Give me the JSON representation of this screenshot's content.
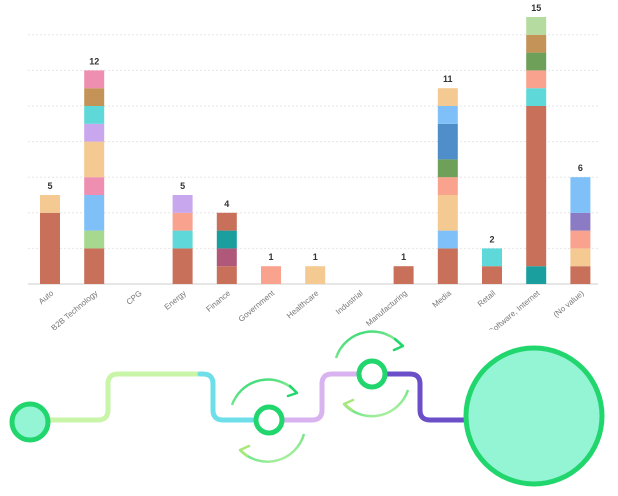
{
  "chart_data": {
    "type": "bar",
    "stacked": true,
    "grid": true,
    "legend": "none",
    "ylim": [
      0,
      15
    ],
    "categories": [
      "Auto",
      "B2B Technology",
      "CPG",
      "Energy",
      "Finance",
      "Government",
      "Healthcare",
      "Industrial",
      "Manufacturing",
      "Media",
      "Retail",
      "Tech, Software, Internet",
      "(No value)"
    ],
    "totals": [
      "5",
      "12",
      "",
      "5",
      "4",
      "1",
      "1",
      "",
      "1",
      "11",
      "2",
      "15",
      "6"
    ],
    "stacks": [
      [
        {
          "value": 4,
          "color": "#c8705a"
        },
        {
          "value": 1,
          "color": "#f5c992"
        }
      ],
      [
        {
          "value": 2,
          "color": "#c8705a"
        },
        {
          "value": 1,
          "color": "#a6d98f"
        },
        {
          "value": 2,
          "color": "#7ec0f7"
        },
        {
          "value": 1,
          "color": "#ee8fb1"
        },
        {
          "value": 2,
          "color": "#f5c992"
        },
        {
          "value": 1,
          "color": "#c9a7ee"
        },
        {
          "value": 1,
          "color": "#5ed8d8"
        },
        {
          "value": 1,
          "color": "#c49358"
        },
        {
          "value": 1,
          "color": "#ee8fb1"
        }
      ],
      [],
      [
        {
          "value": 2,
          "color": "#c8705a"
        },
        {
          "value": 1,
          "color": "#5ed8d8"
        },
        {
          "value": 1,
          "color": "#f9a28e"
        },
        {
          "value": 1,
          "color": "#c9a7ee"
        }
      ],
      [
        {
          "value": 1,
          "color": "#c8705a"
        },
        {
          "value": 1,
          "color": "#b0587a"
        },
        {
          "value": 1,
          "color": "#1a9e9e"
        },
        {
          "value": 1,
          "color": "#c8705a"
        }
      ],
      [
        {
          "value": 1,
          "color": "#f9a28e"
        }
      ],
      [
        {
          "value": 1,
          "color": "#f5c992"
        }
      ],
      [],
      [
        {
          "value": 1,
          "color": "#c8705a"
        }
      ],
      [
        {
          "value": 2,
          "color": "#c8705a"
        },
        {
          "value": 1,
          "color": "#7ec0f7"
        },
        {
          "value": 2,
          "color": "#f5c992"
        },
        {
          "value": 1,
          "color": "#f9a28e"
        },
        {
          "value": 1,
          "color": "#6fa05a"
        },
        {
          "value": 2,
          "color": "#4f8ec9"
        },
        {
          "value": 1,
          "color": "#7ec0f7"
        },
        {
          "value": 1,
          "color": "#f5c992"
        }
      ],
      [
        {
          "value": 1,
          "color": "#c8705a"
        },
        {
          "value": 1,
          "color": "#5ed8d8"
        }
      ],
      [
        {
          "value": 1,
          "color": "#1a9e9e"
        },
        {
          "value": 9,
          "color": "#c8705a"
        },
        {
          "value": 1,
          "color": "#5ed8d8"
        },
        {
          "value": 1,
          "color": "#f9a28e"
        },
        {
          "value": 1,
          "color": "#6fa05a"
        },
        {
          "value": 1,
          "color": "#c49358"
        },
        {
          "value": 1,
          "color": "#b5dba0"
        }
      ],
      [
        {
          "value": 1,
          "color": "#c8705a"
        },
        {
          "value": 1,
          "color": "#f5c992"
        },
        {
          "value": 1,
          "color": "#f9a28e"
        },
        {
          "value": 1,
          "color": "#8b7bc4"
        },
        {
          "value": 2,
          "color": "#7ec0f7"
        }
      ]
    ]
  },
  "decoration": {
    "colors": {
      "green": "#22d66e",
      "mint": "#94f5d4",
      "light_green": "#c9f5a8",
      "cyan": "#6edfe8",
      "lilac": "#d9b3f0",
      "purple": "#6b4fc8"
    }
  }
}
